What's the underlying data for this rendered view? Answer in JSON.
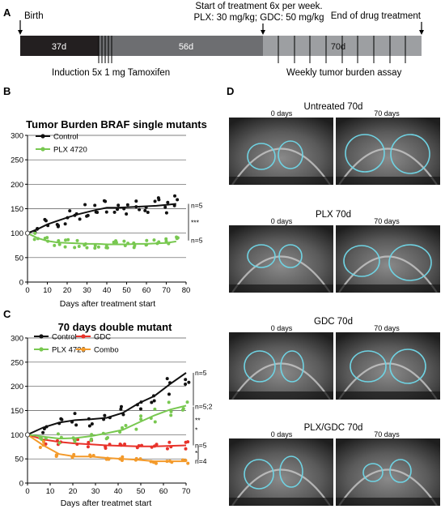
{
  "panel_a": {
    "letter": "A",
    "birth": "Birth",
    "start_line1": "Start of treatment 6x per week.",
    "start_line2": "PLX: 30 mg/kg; GDC: 50 mg/kg",
    "end": "End of drug treatment",
    "seg1": "37d",
    "seg2": "56d",
    "seg3": "70d",
    "induction": "Induction 5x 1 mg Tamoxifen",
    "weekly": "Weekly tumor burden assay",
    "colors": {
      "seg1": "#231f20",
      "seg2": "#6d6e71",
      "seg3": "#9d9fa2"
    }
  },
  "panel_b": {
    "letter": "B"
  },
  "panel_c": {
    "letter": "C"
  },
  "panel_d": {
    "letter": "D",
    "groups": [
      {
        "title": "Untreated 70d",
        "left": "0 days",
        "right": "70 days"
      },
      {
        "title": "PLX 70d",
        "left": "0 days",
        "right": "70 days"
      },
      {
        "title": "GDC 70d",
        "left": "0 days",
        "right": "70 days"
      },
      {
        "title": "PLX/GDC 70d",
        "left": "0 days",
        "right": "70 days"
      }
    ],
    "outline_color": "#6fd3e3"
  },
  "chart_data": [
    {
      "type": "line",
      "title": "Tumor Burden BRAF single mutants",
      "xlabel": "Days after treatment start",
      "ylabel": "",
      "xlim": [
        0,
        80
      ],
      "ylim": [
        0,
        300
      ],
      "xticks": [
        0,
        10,
        20,
        30,
        40,
        50,
        60,
        70,
        80
      ],
      "yticks": [
        0,
        50,
        100,
        150,
        200,
        250,
        300
      ],
      "grid": "horizontal",
      "legend": "top-left",
      "series": [
        {
          "name": "Control",
          "color": "#111111",
          "x": [
            0,
            5,
            10,
            15,
            20,
            25,
            30,
            35,
            40,
            45,
            50,
            55,
            60,
            65,
            70,
            75
          ],
          "y": [
            100,
            108,
            118,
            125,
            132,
            138,
            143,
            148,
            152,
            152,
            153,
            154,
            155,
            156,
            158,
            160
          ]
        },
        {
          "name": "PLX 4720",
          "color": "#78c850",
          "x": [
            0,
            5,
            10,
            15,
            20,
            25,
            30,
            35,
            40,
            45,
            50,
            55,
            60,
            65,
            70,
            75
          ],
          "y": [
            100,
            90,
            84,
            81,
            80,
            79,
            78,
            78,
            77,
            77,
            77,
            78,
            78,
            79,
            80,
            83
          ]
        }
      ],
      "annotations": [
        {
          "text": "n=5",
          "y": 157
        },
        {
          "text": "***",
          "y": 122
        },
        {
          "text": "n=5",
          "y": 85
        }
      ]
    },
    {
      "type": "line",
      "title": "70 days double mutant",
      "xlabel": "Days after treatmet start",
      "ylabel": "",
      "xlim": [
        0,
        70
      ],
      "ylim": [
        0,
        300
      ],
      "xticks": [
        0,
        10,
        20,
        30,
        40,
        50,
        60,
        70
      ],
      "yticks": [
        0,
        50,
        100,
        150,
        200,
        250,
        300
      ],
      "grid": "horizontal",
      "legend": "top-left",
      "series": [
        {
          "name": "Control",
          "color": "#111111",
          "x": [
            0,
            7,
            14,
            21,
            28,
            35,
            42,
            49,
            56,
            63,
            70
          ],
          "y": [
            100,
            115,
            125,
            130,
            132,
            135,
            145,
            165,
            180,
            205,
            228
          ]
        },
        {
          "name": "GDC",
          "color": "#e8322a",
          "x": [
            0,
            7,
            14,
            21,
            28,
            35,
            42,
            49,
            56,
            63,
            70
          ],
          "y": [
            100,
            90,
            85,
            82,
            80,
            78,
            77,
            76,
            76,
            77,
            78
          ]
        },
        {
          "name": "PLX 4720",
          "color": "#78c850",
          "x": [
            0,
            7,
            14,
            21,
            28,
            35,
            42,
            49,
            56,
            63,
            70
          ],
          "y": [
            100,
            96,
            92,
            93,
            97,
            103,
            110,
            125,
            140,
            152,
            160
          ]
        },
        {
          "name": "Combo",
          "color": "#f39a2b",
          "x": [
            0,
            7,
            14,
            21,
            28,
            35,
            42,
            49,
            56,
            63,
            70
          ],
          "y": [
            100,
            78,
            60,
            55,
            55,
            52,
            50,
            48,
            45,
            45,
            45
          ]
        }
      ],
      "annotations": [
        {
          "text": "n=5",
          "y": 228
        },
        {
          "text": "n=5;2",
          "y": 158
        },
        {
          "text": "**",
          "y": 130
        },
        {
          "text": "*",
          "y": 110
        },
        {
          "text": "n=5",
          "y": 78
        },
        {
          "text": "*",
          "y": 62
        },
        {
          "text": "n=4",
          "y": 45
        }
      ]
    }
  ]
}
